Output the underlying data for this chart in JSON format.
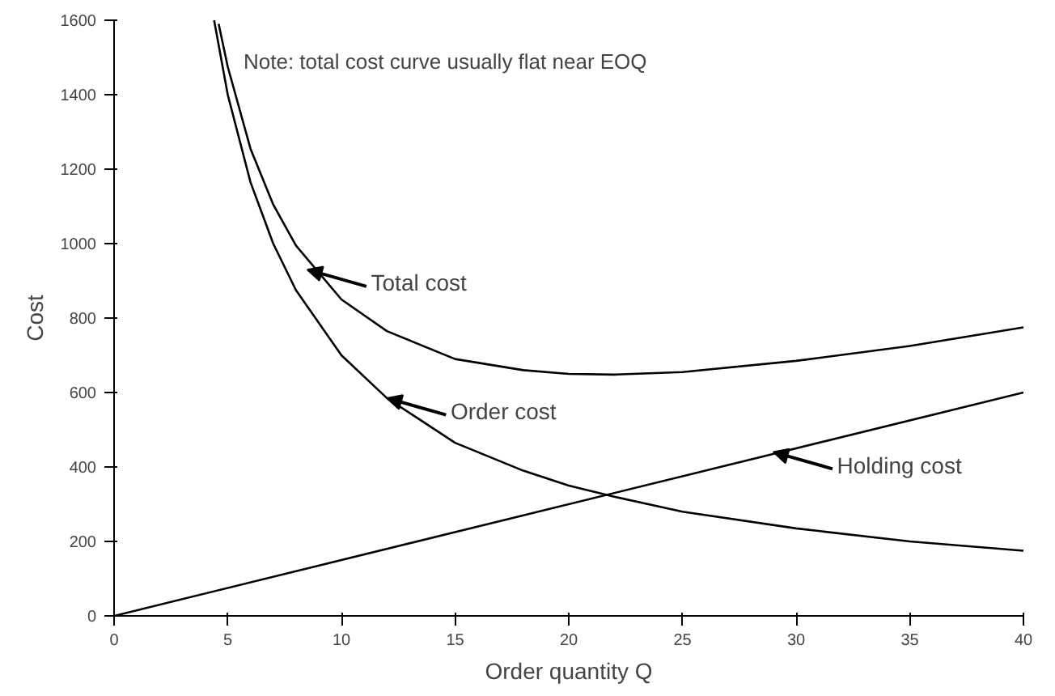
{
  "chart_data": {
    "type": "line",
    "xlabel": "Order quantity Q",
    "ylabel": "Cost",
    "xlim": [
      0,
      40
    ],
    "ylim": [
      0,
      1600
    ],
    "xticks": [
      0,
      5,
      10,
      15,
      20,
      25,
      30,
      35,
      40
    ],
    "yticks": [
      0,
      200,
      400,
      600,
      800,
      1000,
      1200,
      1400,
      1600
    ],
    "grid": false,
    "line_style": "solid",
    "marker": "none",
    "series": [
      {
        "color": "#000000",
        "x": [
          4.6,
          5,
          6,
          7,
          8,
          10,
          12,
          15,
          18,
          20,
          22,
          25,
          30,
          35,
          40
        ],
        "values": [
          1590,
          1475,
          1255,
          1105,
          995,
          850,
          765,
          690,
          660,
          650,
          648,
          655,
          685,
          725,
          775
        ]
      },
      {
        "color": "#000000",
        "x": [
          4.4,
          5,
          6,
          7,
          8,
          10,
          12,
          15,
          18,
          20,
          22,
          25,
          30,
          35,
          40
        ],
        "values": [
          1600,
          1400,
          1165,
          1000,
          875,
          700,
          585,
          465,
          390,
          350,
          320,
          280,
          235,
          200,
          175
        ]
      },
      {
        "color": "#000000",
        "x": [
          0,
          40
        ],
        "values": [
          0,
          600
        ]
      }
    ],
    "annotations": [
      "Note: total cost curve usually flat near EOQ",
      {
        "text": "Total cost",
        "x": 8.5,
        "y": 930
      },
      {
        "text": "Order cost",
        "x": 12,
        "y": 585
      },
      {
        "text": "Holding cost",
        "x": 29,
        "y": 440
      }
    ]
  }
}
